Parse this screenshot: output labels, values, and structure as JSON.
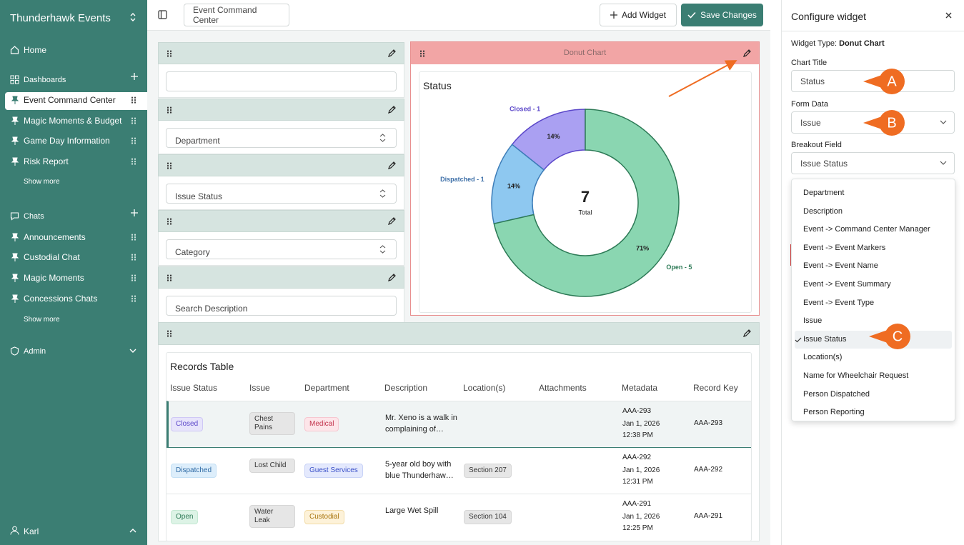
{
  "sidebar": {
    "brand": "Thunderhawk Events",
    "home": "Home",
    "dashboards_label": "Dashboards",
    "dashboards": [
      "Event Command Center",
      "Magic Moments & Budget",
      "Game Day Information",
      "Risk Report"
    ],
    "dashboards_show_more": "Show more",
    "chats_label": "Chats",
    "chats": [
      "Announcements",
      "Custodial Chat",
      "Magic Moments",
      "Concessions Chats"
    ],
    "chats_show_more": "Show more",
    "admin": "Admin",
    "user": "Karl"
  },
  "toolbar": {
    "dashboard_name": "Event Command Center",
    "add_widget": "Add Widget",
    "save_changes": "Save Changes"
  },
  "filters": [
    "Department",
    "Issue Status",
    "Category",
    "Search Description"
  ],
  "donut_widget": {
    "header": "Donut Chart"
  },
  "chart_data": {
    "type": "donut",
    "title": "Status",
    "categories": [
      "Closed - 1",
      "Dispatched - 1",
      "Open - 5"
    ],
    "values": [
      1,
      1,
      5
    ],
    "percent_labels": [
      "14%",
      "14%",
      "71%"
    ],
    "colors": [
      "#aaa0f2",
      "#8ec8f0",
      "#8ad6b1"
    ],
    "stroke_colors": [
      "#5b47c9",
      "#3d7db8",
      "#2d7a56"
    ],
    "label_colors": [
      "#5b47c9",
      "#3d6fa8",
      "#2d7a56"
    ],
    "center_value": 7,
    "center_label": "Total"
  },
  "records_table": {
    "title": "Records Table",
    "columns": [
      "Issue Status",
      "Issue",
      "Department",
      "Description",
      "Location(s)",
      "Attachments",
      "Metadata",
      "Record Key"
    ],
    "rows": [
      {
        "status": "Closed",
        "issue": "Chest Pains",
        "department": "Medical",
        "description": "Mr. Xeno is a walk in complaining of…",
        "metadata": [
          "AAA-293",
          "Jan 1, 2026",
          "12:38 PM"
        ],
        "record_key": "AAA-293"
      },
      {
        "status": "Dispatched",
        "issue": "Lost Child",
        "department": "Guest Services",
        "description": "5-year old boy with blue Thunderhaw…",
        "location": "Section 207",
        "metadata": [
          "AAA-292",
          "Jan 1, 2026",
          "12:31 PM"
        ],
        "record_key": "AAA-292"
      },
      {
        "status": "Open",
        "issue": "Water Leak",
        "department": "Custodial",
        "description": "Large Wet Spill",
        "location": "Section 104",
        "metadata": [
          "AAA-291",
          "Jan 1, 2026",
          "12:25 PM"
        ],
        "record_key": "AAA-291"
      }
    ]
  },
  "config_panel": {
    "title": "Configure widget",
    "widget_type_label": "Widget Type:",
    "widget_type": "Donut Chart",
    "chart_title_label": "Chart Title",
    "chart_title": "Status",
    "form_data_label": "Form Data",
    "form_data": "Issue",
    "breakout_field_label": "Breakout Field",
    "breakout_field": "Issue Status",
    "options": [
      "Department",
      "Description",
      "Event -> Command Center Manager",
      "Event -> Event Markers",
      "Event -> Event Name",
      "Event -> Event Summary",
      "Event -> Event Type",
      "Issue",
      "Issue Status",
      "Location(s)",
      "Name for Wheelchair Request",
      "Person Dispatched",
      "Person Reporting"
    ],
    "selected_option": 8
  },
  "annotations": [
    "A",
    "B",
    "C"
  ]
}
